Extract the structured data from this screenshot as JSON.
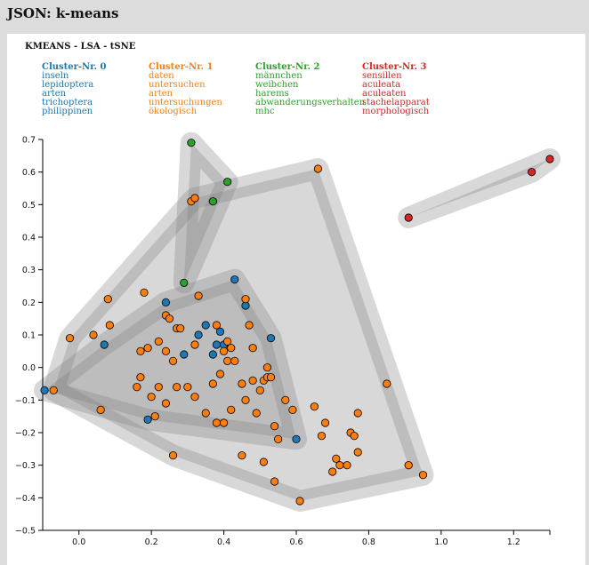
{
  "page": {
    "title": "JSON: k-means"
  },
  "chart_data": {
    "type": "scatter",
    "title": "KMEANS - LSA - tSNE",
    "xlabel": "",
    "ylabel": "",
    "xlim": [
      -0.1,
      1.3
    ],
    "ylim": [
      -0.5,
      0.7
    ],
    "x_ticks": [
      0.0,
      0.2,
      0.4,
      0.6,
      0.8,
      1.0,
      1.2
    ],
    "x_tick_labels": [
      "0.0",
      "0.2",
      "0.4",
      "0.6",
      "0.8",
      "1.0",
      "1.2"
    ],
    "y_ticks": [
      0.7,
      0.6,
      0.5,
      0.4,
      0.3,
      0.2,
      0.1,
      0.0,
      -0.1,
      -0.2,
      -0.3,
      -0.4,
      -0.5
    ],
    "y_tick_labels": [
      "0.7",
      "0.6",
      "0.5",
      "0.4",
      "0.3",
      "0.2",
      "0.1",
      "0.0",
      "−0.1",
      "−0.2",
      "−0.3",
      "−0.4",
      "−0.5"
    ],
    "grid": false,
    "legend_position": "top",
    "hull_color": "#7f7f7f",
    "series": [
      {
        "name": "Cluster-Nr. 0",
        "color": "#1f77b4",
        "terms": [
          "inseln",
          "lepidoptera",
          "arten",
          "trichoptera",
          "philippinen"
        ],
        "points": [
          [
            -0.095,
            -0.07
          ],
          [
            0.07,
            0.07
          ],
          [
            0.19,
            -0.16
          ],
          [
            0.24,
            0.2
          ],
          [
            0.29,
            0.04
          ],
          [
            0.33,
            0.1
          ],
          [
            0.35,
            0.13
          ],
          [
            0.37,
            0.04
          ],
          [
            0.38,
            0.07
          ],
          [
            0.39,
            0.11
          ],
          [
            0.4,
            0.07
          ],
          [
            0.43,
            0.27
          ],
          [
            0.46,
            0.19
          ],
          [
            0.53,
            0.09
          ],
          [
            0.6,
            -0.22
          ]
        ]
      },
      {
        "name": "Cluster-Nr. 1",
        "color": "#ff7f0e",
        "terms": [
          "daten",
          "untersuchen",
          "arten",
          "untersuchungen",
          "ökologisch"
        ],
        "points": [
          [
            -0.07,
            -0.07
          ],
          [
            -0.025,
            0.09
          ],
          [
            0.04,
            0.1
          ],
          [
            0.06,
            -0.13
          ],
          [
            0.08,
            0.21
          ],
          [
            0.085,
            0.13
          ],
          [
            0.16,
            -0.06
          ],
          [
            0.17,
            -0.03
          ],
          [
            0.17,
            0.05
          ],
          [
            0.18,
            0.23
          ],
          [
            0.19,
            0.06
          ],
          [
            0.2,
            -0.09
          ],
          [
            0.21,
            -0.15
          ],
          [
            0.22,
            0.08
          ],
          [
            0.22,
            -0.06
          ],
          [
            0.24,
            0.16
          ],
          [
            0.24,
            0.05
          ],
          [
            0.24,
            -0.11
          ],
          [
            0.25,
            0.15
          ],
          [
            0.26,
            0.02
          ],
          [
            0.26,
            -0.27
          ],
          [
            0.27,
            0.12
          ],
          [
            0.27,
            -0.06
          ],
          [
            0.28,
            0.12
          ],
          [
            0.3,
            -0.06
          ],
          [
            0.31,
            0.51
          ],
          [
            0.32,
            0.52
          ],
          [
            0.32,
            0.07
          ],
          [
            0.32,
            -0.09
          ],
          [
            0.33,
            0.22
          ],
          [
            0.35,
            -0.14
          ],
          [
            0.37,
            -0.05
          ],
          [
            0.38,
            0.13
          ],
          [
            0.38,
            -0.17
          ],
          [
            0.39,
            -0.02
          ],
          [
            0.4,
            0.05
          ],
          [
            0.4,
            -0.17
          ],
          [
            0.41,
            0.08
          ],
          [
            0.41,
            0.02
          ],
          [
            0.42,
            -0.13
          ],
          [
            0.42,
            0.06
          ],
          [
            0.43,
            0.02
          ],
          [
            0.45,
            -0.05
          ],
          [
            0.45,
            -0.27
          ],
          [
            0.46,
            -0.1
          ],
          [
            0.46,
            0.21
          ],
          [
            0.47,
            0.13
          ],
          [
            0.48,
            -0.04
          ],
          [
            0.48,
            0.06
          ],
          [
            0.49,
            -0.14
          ],
          [
            0.5,
            -0.07
          ],
          [
            0.51,
            -0.29
          ],
          [
            0.51,
            -0.04
          ],
          [
            0.52,
            0.0
          ],
          [
            0.52,
            -0.03
          ],
          [
            0.53,
            -0.03
          ],
          [
            0.54,
            -0.18
          ],
          [
            0.54,
            -0.35
          ],
          [
            0.55,
            -0.22
          ],
          [
            0.57,
            -0.1
          ],
          [
            0.59,
            -0.13
          ],
          [
            0.61,
            -0.41
          ],
          [
            0.65,
            -0.12
          ],
          [
            0.66,
            0.61
          ],
          [
            0.67,
            -0.21
          ],
          [
            0.68,
            -0.17
          ],
          [
            0.7,
            -0.32
          ],
          [
            0.71,
            -0.28
          ],
          [
            0.72,
            -0.3
          ],
          [
            0.74,
            -0.3
          ],
          [
            0.75,
            -0.2
          ],
          [
            0.76,
            -0.21
          ],
          [
            0.77,
            -0.14
          ],
          [
            0.77,
            -0.26
          ],
          [
            0.85,
            -0.05
          ],
          [
            0.91,
            -0.3
          ],
          [
            0.95,
            -0.33
          ]
        ]
      },
      {
        "name": "Cluster-Nr. 2",
        "color": "#2ca02c",
        "terms": [
          "männchen",
          "weibchen",
          "harems",
          "abwanderungsverhalten",
          "mhc"
        ],
        "points": [
          [
            0.31,
            0.69
          ],
          [
            0.37,
            0.51
          ],
          [
            0.41,
            0.57
          ],
          [
            0.29,
            0.26
          ]
        ]
      },
      {
        "name": "Cluster-Nr. 3",
        "color": "#d62728",
        "terms": [
          "sensillen",
          "aculeata",
          "aculeaten",
          "stachelapparat",
          "morphologisch"
        ],
        "points": [
          [
            0.91,
            0.46
          ],
          [
            1.25,
            0.6
          ],
          [
            1.3,
            0.64
          ]
        ]
      }
    ]
  }
}
